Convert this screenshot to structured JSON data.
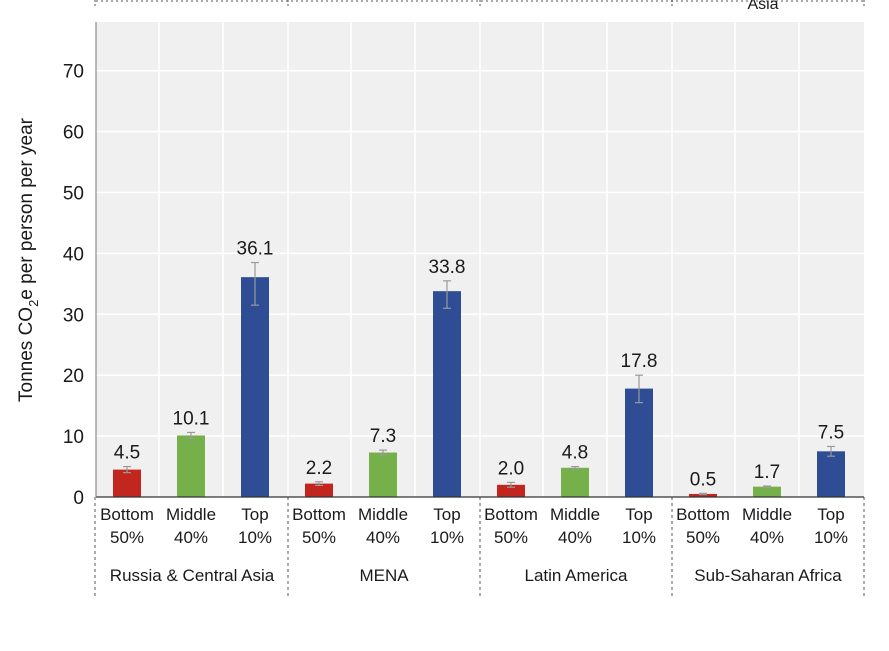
{
  "chart_data": {
    "type": "bar",
    "ylabel_parts": [
      "Tonnes CO",
      "2",
      "e per person per year"
    ],
    "ylim": [
      0,
      78
    ],
    "yticks": [
      0,
      10,
      20,
      30,
      40,
      50,
      60,
      70
    ],
    "grid": true,
    "top_fragment": "Asia",
    "groups": [
      {
        "name": "Russia & Central Asia",
        "bars": [
          {
            "label": [
              "Bottom",
              "50%"
            ],
            "value": 4.5,
            "value_label": "4.5",
            "err": [
              4.0,
              5.0
            ],
            "color": "#c1261f"
          },
          {
            "label": [
              "Middle",
              "40%"
            ],
            "value": 10.1,
            "value_label": "10.1",
            "err": [
              9.6,
              10.6
            ],
            "color": "#76b04a"
          },
          {
            "label": [
              "Top",
              "10%"
            ],
            "value": 36.1,
            "value_label": "36.1",
            "err": [
              31.5,
              38.5
            ],
            "color": "#2e4d95"
          }
        ]
      },
      {
        "name": "MENA",
        "bars": [
          {
            "label": [
              "Bottom",
              "50%"
            ],
            "value": 2.2,
            "value_label": "2.2",
            "err": [
              1.9,
              2.5
            ],
            "color": "#c1261f"
          },
          {
            "label": [
              "Middle",
              "40%"
            ],
            "value": 7.3,
            "value_label": "7.3",
            "err": [
              6.9,
              7.7
            ],
            "color": "#76b04a"
          },
          {
            "label": [
              "Top",
              "10%"
            ],
            "value": 33.8,
            "value_label": "33.8",
            "err": [
              31.0,
              35.5
            ],
            "color": "#2e4d95"
          }
        ]
      },
      {
        "name": "Latin America",
        "bars": [
          {
            "label": [
              "Bottom",
              "50%"
            ],
            "value": 2.0,
            "value_label": "2.0",
            "err": [
              1.6,
              2.4
            ],
            "color": "#c1261f"
          },
          {
            "label": [
              "Middle",
              "40%"
            ],
            "value": 4.8,
            "value_label": "4.8",
            "err": [
              4.6,
              5.0
            ],
            "color": "#76b04a"
          },
          {
            "label": [
              "Top",
              "10%"
            ],
            "value": 17.8,
            "value_label": "17.8",
            "err": [
              15.5,
              20.0
            ],
            "color": "#2e4d95"
          }
        ]
      },
      {
        "name": "Sub-Saharan Africa",
        "bars": [
          {
            "label": [
              "Bottom",
              "50%"
            ],
            "value": 0.5,
            "value_label": "0.5",
            "err": [
              0.4,
              0.6
            ],
            "color": "#c1261f"
          },
          {
            "label": [
              "Middle",
              "40%"
            ],
            "value": 1.7,
            "value_label": "1.7",
            "err": [
              1.6,
              1.8
            ],
            "color": "#76b04a"
          },
          {
            "label": [
              "Top",
              "10%"
            ],
            "value": 7.5,
            "value_label": "7.5",
            "err": [
              6.7,
              8.3
            ],
            "color": "#2e4d95"
          }
        ]
      }
    ]
  }
}
